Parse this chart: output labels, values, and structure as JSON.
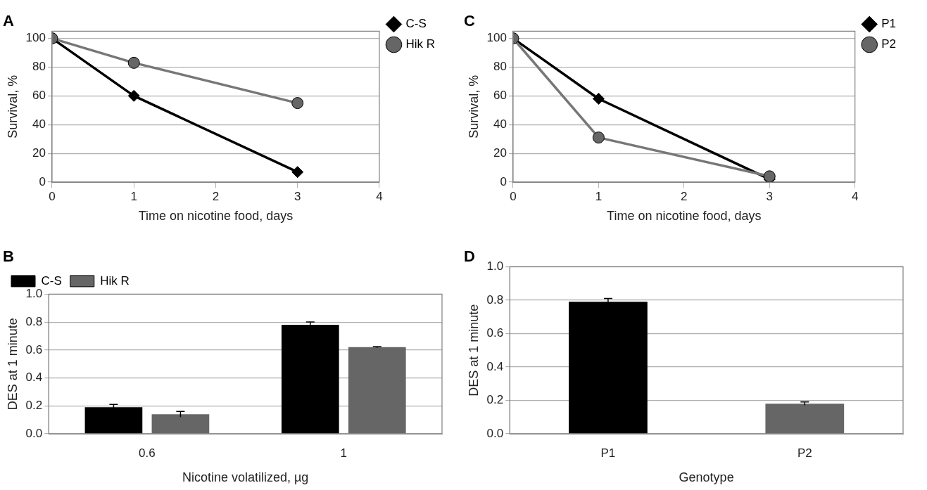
{
  "chart_data": [
    {
      "type": "line",
      "title": "A",
      "xlabel": "Time on nicotine food, days",
      "ylabel": "Survival, %",
      "xlim": [
        0,
        4
      ],
      "xticks": [
        0,
        1,
        2,
        3,
        4
      ],
      "ylim": [
        0,
        105
      ],
      "yticks": [
        0,
        20,
        40,
        60,
        80,
        100
      ],
      "grid": "y",
      "legend": "top right",
      "line_style": "solid",
      "x": [
        0,
        1,
        3
      ],
      "series": [
        {
          "name": "C-S",
          "color": "#000000",
          "marker": "diamond",
          "values": [
            100,
            60,
            7
          ]
        },
        {
          "name": "Hik R",
          "color": "#777777",
          "marker": "circle",
          "values": [
            100,
            83,
            55
          ]
        }
      ]
    },
    {
      "type": "line",
      "title": "C",
      "xlabel": "Time on nicotine food, days",
      "ylabel": "Survival, %",
      "xlim": [
        0,
        4
      ],
      "xticks": [
        0,
        1,
        2,
        3,
        4
      ],
      "ylim": [
        0,
        105
      ],
      "yticks": [
        0,
        20,
        40,
        60,
        80,
        100
      ],
      "grid": "y",
      "legend": "top right",
      "line_style": "solid",
      "x": [
        0,
        1,
        3
      ],
      "series": [
        {
          "name": "P1",
          "color": "#000000",
          "marker": "diamond",
          "values": [
            100,
            58,
            2
          ]
        },
        {
          "name": "P2",
          "color": "#777777",
          "marker": "circle",
          "values": [
            100,
            31,
            4
          ]
        }
      ]
    },
    {
      "type": "bar",
      "title": "B",
      "xlabel": "Nicotine volatilized, µg",
      "ylabel": "DES at 1 minute",
      "categories": [
        "0.6",
        "1"
      ],
      "ylim": [
        0,
        1
      ],
      "yticks": [
        {
          "value": 0,
          "label": "0.0"
        },
        {
          "value": 0.2,
          "label": "0.2"
        },
        {
          "value": 0.4,
          "label": "0.4"
        },
        {
          "value": 0.6,
          "label": "0.6"
        },
        {
          "value": 0.8,
          "label": "0.8"
        },
        {
          "value": 1,
          "label": "1.0"
        }
      ],
      "grid": "y",
      "legend": "top left",
      "series": [
        {
          "name": "C-S",
          "color": "#000000",
          "values": [
            0.19,
            0.78
          ],
          "errors": [
            0.02,
            0.02
          ]
        },
        {
          "name": "Hik R",
          "color": "#666666",
          "values": [
            0.14,
            0.62
          ],
          "errors": [
            0.02,
            0.005
          ]
        }
      ]
    },
    {
      "type": "bar",
      "title": "D",
      "xlabel": "Genotype",
      "ylabel": "DES at 1 minute",
      "categories": [
        "P1",
        "P2"
      ],
      "ylim": [
        0,
        1
      ],
      "yticks": [
        {
          "value": 0,
          "label": "0.0"
        },
        {
          "value": 0.2,
          "label": "0.2"
        },
        {
          "value": 0.4,
          "label": "0.4"
        },
        {
          "value": 0.6,
          "label": "0.6"
        },
        {
          "value": 0.8,
          "label": "0.8"
        },
        {
          "value": 1,
          "label": "1.0"
        }
      ],
      "grid": "y",
      "values": [
        0.79,
        0.18
      ],
      "colors": [
        "#000000",
        "#666666"
      ],
      "errors": [
        0.02,
        0.01
      ]
    }
  ]
}
